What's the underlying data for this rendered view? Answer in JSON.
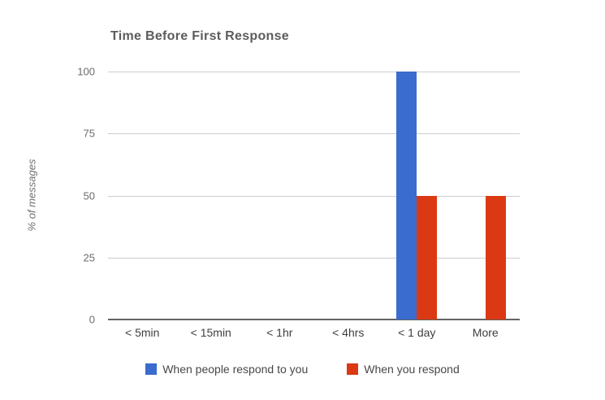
{
  "chart_data": {
    "type": "bar",
    "title": "Time Before First Response",
    "xlabel": "",
    "ylabel": "% of messages",
    "categories": [
      "< 5min",
      "< 15min",
      "< 1hr",
      "< 4hrs",
      "< 1 day",
      "More"
    ],
    "series": [
      {
        "name": "When people respond to you",
        "color": "#3a6bce",
        "values": [
          0,
          0,
          0,
          0,
          100,
          0
        ]
      },
      {
        "name": "When you respond",
        "color": "#da3914",
        "values": [
          0,
          0,
          0,
          0,
          50,
          50
        ]
      }
    ],
    "y_ticks": [
      100,
      75,
      50,
      25,
      0
    ],
    "ylim": [
      0,
      100
    ],
    "grid": true,
    "legend_position": "bottom",
    "background_color": "#ffffff",
    "grid_color": "#cdcdcd",
    "axis_line_color": "#646464"
  }
}
